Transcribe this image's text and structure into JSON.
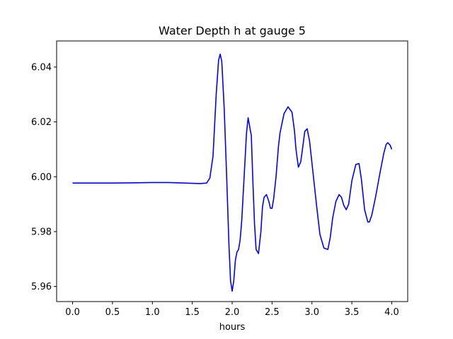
{
  "chart_data": {
    "type": "line",
    "title": "Water Depth h at gauge 5",
    "xlabel": "hours",
    "ylabel": "",
    "xlim": [
      -0.2,
      4.2
    ],
    "ylim": [
      5.9545,
      6.0495
    ],
    "xticks": [
      0.0,
      0.5,
      1.0,
      1.5,
      2.0,
      2.5,
      3.0,
      3.5,
      4.0
    ],
    "xtick_labels": [
      "0.0",
      "0.5",
      "1.0",
      "1.5",
      "2.0",
      "2.5",
      "3.0",
      "3.5",
      "4.0"
    ],
    "yticks": [
      5.96,
      5.98,
      6.0,
      6.02,
      6.04
    ],
    "ytick_labels": [
      "5.96",
      "5.98",
      "6.00",
      "6.02",
      "6.04"
    ],
    "grid": false,
    "series": [
      {
        "color": "#0000ff",
        "x": [
          0.0,
          0.5,
          0.8,
          1.0,
          1.1,
          1.2,
          1.3,
          1.4,
          1.5,
          1.6,
          1.68,
          1.72,
          1.76,
          1.8,
          1.83,
          1.85,
          1.87,
          1.9,
          1.93,
          1.96,
          1.98,
          2.0,
          2.02,
          2.04,
          2.06,
          2.08,
          2.1,
          2.12,
          2.15,
          2.18,
          2.2,
          2.24,
          2.26,
          2.28,
          2.3,
          2.33,
          2.36,
          2.38,
          2.4,
          2.43,
          2.46,
          2.48,
          2.5,
          2.52,
          2.55,
          2.58,
          2.6,
          2.65,
          2.7,
          2.75,
          2.78,
          2.8,
          2.83,
          2.86,
          2.89,
          2.91,
          2.94,
          2.97,
          3.0,
          3.03,
          3.06,
          3.1,
          3.15,
          3.2,
          3.23,
          3.26,
          3.3,
          3.34,
          3.37,
          3.4,
          3.43,
          3.46,
          3.5,
          3.55,
          3.59,
          3.62,
          3.66,
          3.7,
          3.72,
          3.75,
          3.8,
          3.85,
          3.9,
          3.93,
          3.95,
          3.98,
          4.0
        ],
        "y": [
          5.9977,
          5.9977,
          5.9978,
          5.9979,
          5.9979,
          5.9979,
          5.9978,
          5.9977,
          5.9976,
          5.9975,
          5.9977,
          5.9995,
          6.0075,
          6.03,
          6.0425,
          6.0447,
          6.042,
          6.025,
          6.001,
          5.975,
          5.962,
          5.9583,
          5.962,
          5.9695,
          5.9725,
          5.9735,
          5.977,
          5.984,
          6.0,
          6.016,
          6.0215,
          6.015,
          5.998,
          5.983,
          5.9735,
          5.972,
          5.98,
          5.989,
          5.9925,
          5.9935,
          5.991,
          5.9885,
          5.9885,
          5.992,
          6.0,
          6.011,
          6.016,
          6.023,
          6.0255,
          6.0235,
          6.017,
          6.01,
          6.0035,
          6.0055,
          6.012,
          6.0165,
          6.0175,
          6.013,
          6.005,
          5.997,
          5.989,
          5.979,
          5.974,
          5.9735,
          5.978,
          5.985,
          5.991,
          5.9935,
          5.9925,
          5.9895,
          5.988,
          5.99,
          5.9985,
          6.0045,
          6.0048,
          5.999,
          5.988,
          5.9835,
          5.9835,
          5.986,
          5.993,
          6.001,
          6.0085,
          6.0118,
          6.0124,
          6.0115,
          6.01
        ]
      }
    ]
  }
}
